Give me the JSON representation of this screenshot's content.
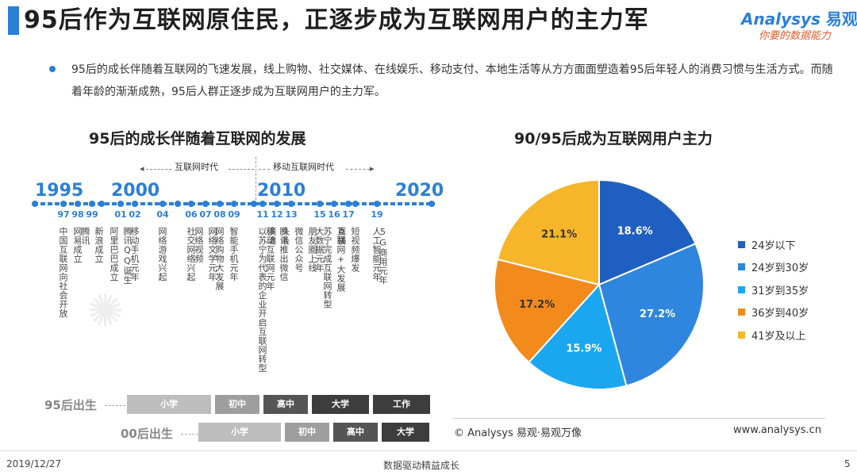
{
  "header": {
    "title": "95后作为互联网原住民，正逐步成为互联网用户的主力军",
    "logo_name": "Analysys",
    "logo_name_cn": "易观",
    "logo_slogan": "你要的数据能力"
  },
  "bullet": "95后的成长伴随着互联网的飞速发展，线上购物、社交媒体、在线娱乐、移动支付、本地生活等从方方面面塑造着95后年轻人的消费习惯与生活方式。而随着年龄的渐渐成熟，95后人群正逐步成为互联网用户的主力军。",
  "timeline": {
    "title": "95后的成长伴随着互联网的发展",
    "eras": [
      "互联网时代",
      "移动互联网时代"
    ],
    "decades": [
      "1995",
      "2000",
      "2010",
      "2020"
    ],
    "years": [
      {
        "label": "97",
        "events": [
          "中国互联网向社会开放"
        ]
      },
      {
        "label": "98",
        "events": [
          "网易成立"
        ]
      },
      {
        "label": "99",
        "events": [
          "腾讯",
          "新浪成立"
        ]
      },
      {
        "label": "01",
        "events": [
          "阿里巴巴成立",
          "腾讯QQ诞生"
        ]
      },
      {
        "label": "02",
        "events": [
          "移动手机元年"
        ]
      },
      {
        "label": "04",
        "events": [
          "网络游戏兴起"
        ]
      },
      {
        "label": "06",
        "events": [
          "社交网络兴起"
        ]
      },
      {
        "label": "07",
        "events": [
          "网络视频",
          "网络文学元年"
        ]
      },
      {
        "label": "08",
        "events": [
          "网络购物大发展"
        ]
      },
      {
        "label": "09",
        "events": [
          "智能手机元年"
        ]
      },
      {
        "label": "11",
        "events": [
          "以苏宁为代表的企业开启互联网转型"
        ]
      },
      {
        "label": "12",
        "events": [
          "移动互联网元年",
          "腾讯推出微信"
        ]
      },
      {
        "label": "13",
        "events": [
          "滴滴",
          "头条",
          "微信公众号",
          "朋友圈上线"
        ]
      },
      {
        "label": "15",
        "events": [
          "大数据元年"
        ]
      },
      {
        "label": "16",
        "events": [
          "苏宁完成互联网转型",
          "互联网+大发展"
        ]
      },
      {
        "label": "17",
        "events": [
          "直播",
          "短视频爆发"
        ]
      },
      {
        "label": "19",
        "events": [
          "人工智能元年"
        ]
      },
      {
        "label": "",
        "events": [
          "5G商用元年"
        ]
      }
    ],
    "gen95": {
      "label": "95后出生",
      "stages": [
        "小学",
        "初中",
        "高中",
        "大学",
        "工作"
      ]
    },
    "gen00": {
      "label": "00后出生",
      "stages": [
        "小学",
        "初中",
        "高中",
        "大学"
      ]
    }
  },
  "chart_data": {
    "type": "pie",
    "title": "90/95后成为互联网用户主力",
    "series": [
      {
        "name": "24岁以下",
        "value": 18.6,
        "color": "#1f5fc2"
      },
      {
        "name": "24岁到30岁",
        "value": 27.2,
        "color": "#2e86de"
      },
      {
        "name": "31岁到35岁",
        "value": 15.9,
        "color": "#1ba6f0"
      },
      {
        "name": "36岁到40岁",
        "value": 17.2,
        "color": "#f28a1c"
      },
      {
        "name": "41岁及以上",
        "value": 21.1,
        "color": "#f6b52a"
      }
    ],
    "labels": [
      "18.6%",
      "27.2%",
      "15.9%",
      "17.2%",
      "21.1%"
    ],
    "legend_position": "right"
  },
  "source": "© Analysys 易观·易观万像",
  "website": "www.analysys.cn",
  "footer": {
    "date": "2019/12/27",
    "slogan": "数据驱动精益成长",
    "page": "5"
  },
  "colors": {
    "accent": "#2b7fd6",
    "stage_light": "#bdbdbd",
    "stage_mid": "#9e9e9e",
    "stage_dark": "#555555",
    "stage_darker": "#3d3d3d"
  }
}
